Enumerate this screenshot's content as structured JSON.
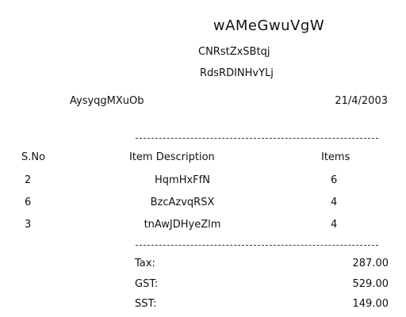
{
  "receipt": {
    "store_name": "wAMeGwuVgW",
    "line1": "CNRstZxSBtqj",
    "line2": "RdsRDINHvYLj",
    "cashier": "AysyqgMXuOb",
    "date": "21/4/2003"
  },
  "table": {
    "headers": [
      "S.No",
      "Item Description",
      "Items"
    ],
    "rows": [
      {
        "sno": "2",
        "desc": "HqmHxFfN",
        "items": "6"
      },
      {
        "sno": "6",
        "desc": "BzcAzvqRSX",
        "items": "4"
      },
      {
        "sno": "3",
        "desc": "tnAwJDHyeZlm",
        "items": "4"
      }
    ]
  },
  "totals": [
    {
      "label": "Tax:",
      "value": "287.00"
    },
    {
      "label": "GST:",
      "value": "529.00"
    },
    {
      "label": "SST:",
      "value": "149.00"
    }
  ]
}
